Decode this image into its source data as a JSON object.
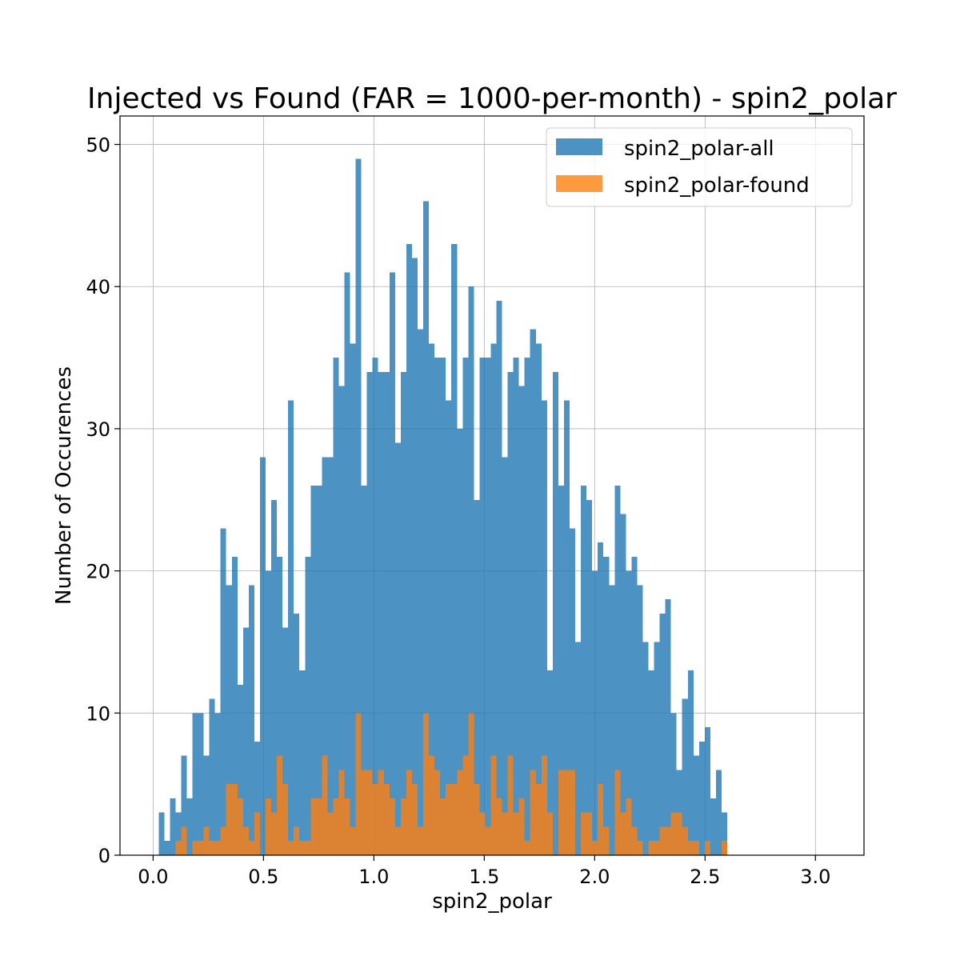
{
  "chart_data": {
    "type": "bar",
    "title": "Injected vs Found (FAR = 1000-per-month) - spin2_polar",
    "xlabel": "spin2_polar",
    "ylabel": "Number of Occurences",
    "xlim": [
      -0.15,
      3.22
    ],
    "ylim": [
      0,
      52
    ],
    "bins": {
      "start": 0.025,
      "width": 0.0255,
      "count": 120
    },
    "xticks": [
      0.0,
      0.5,
      1.0,
      1.5,
      2.0,
      2.5,
      3.0
    ],
    "xtick_labels": [
      "0.0",
      "0.5",
      "1.0",
      "1.5",
      "2.0",
      "2.5",
      "3.0"
    ],
    "yticks": [
      0,
      10,
      20,
      30,
      40,
      50
    ],
    "ytick_labels": [
      "0",
      "10",
      "20",
      "30",
      "40",
      "50"
    ],
    "grid": true,
    "legend_position": "top-right",
    "series": [
      {
        "name": "spin2_polar-all",
        "color": "#1f77b4",
        "opacity": 0.8,
        "values": [
          3,
          1,
          4,
          3,
          7,
          4,
          10,
          10,
          7,
          11,
          10,
          23,
          19,
          21,
          12,
          16,
          19,
          8,
          28,
          20,
          25,
          21,
          16,
          32,
          17,
          13,
          21,
          26,
          26,
          28,
          28,
          35,
          33,
          41,
          36,
          49,
          26,
          34,
          35,
          34,
          34,
          41,
          29,
          34,
          43,
          42,
          37,
          46,
          36,
          35,
          35,
          32,
          43,
          30,
          35,
          40,
          25,
          35,
          35,
          36,
          39,
          28,
          34,
          35,
          33,
          35,
          37,
          36,
          32,
          13,
          34,
          26,
          32,
          23,
          15,
          26,
          25,
          20,
          22,
          21,
          19,
          26,
          24,
          20,
          21,
          19,
          15,
          13,
          15,
          17,
          18,
          10,
          6,
          11,
          13,
          7,
          8,
          9,
          4,
          6,
          3,
          0,
          0,
          0,
          0,
          0,
          0,
          0,
          0,
          0,
          0,
          0,
          0,
          0,
          0,
          0,
          0,
          0,
          0,
          0
        ]
      },
      {
        "name": "spin2_polar-found",
        "color": "#ff7f0e",
        "opacity": 0.8,
        "values": [
          0,
          0,
          0,
          1,
          2,
          0,
          1,
          1,
          2,
          1,
          1,
          2,
          5,
          5,
          4,
          2,
          1,
          3,
          0,
          4,
          3,
          7,
          5,
          1,
          2,
          1,
          1,
          4,
          4,
          7,
          3,
          4,
          6,
          4,
          2,
          10,
          6,
          6,
          5,
          6,
          5,
          4,
          2,
          4,
          6,
          5,
          2,
          10,
          7,
          6,
          4,
          5,
          5,
          6,
          7,
          10,
          5,
          3,
          2,
          7,
          4,
          3,
          7,
          3,
          4,
          1,
          6,
          5,
          7,
          3,
          0,
          6,
          6,
          6,
          0,
          3,
          3,
          1,
          5,
          2,
          0,
          6,
          3,
          4,
          2,
          1,
          0,
          1,
          1,
          2,
          2,
          3,
          3,
          2,
          1,
          1,
          0,
          1,
          0,
          0,
          1,
          0,
          0,
          0,
          0,
          0,
          0,
          0,
          0,
          0,
          0,
          0,
          0,
          0,
          0,
          0,
          0,
          0,
          0,
          0
        ]
      }
    ]
  }
}
